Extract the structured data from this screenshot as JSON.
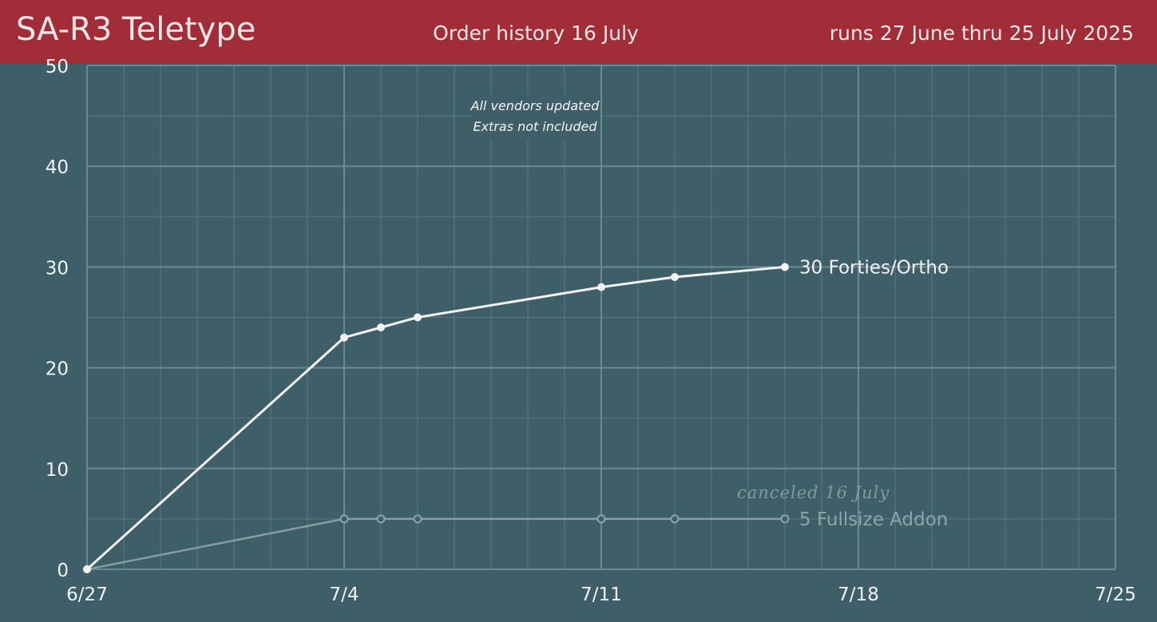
{
  "header": {
    "title": "SA-R3 Teletype",
    "subtitle": "Order history 16 July",
    "range": "runs 27 June thru 25 July 2025"
  },
  "colors": {
    "header_bg": "#a02d38",
    "plot_bg": "#3f5f68",
    "grid": "#6e8f97",
    "active_series": "#f2f2f2",
    "canceled_series": "#8fa3a8"
  },
  "chart_data": {
    "type": "line",
    "xlim": [
      "2025-06-27",
      "2025-07-25"
    ],
    "ylim": [
      0,
      50
    ],
    "x_ticks": [
      {
        "date": "2025-06-27",
        "label": "6/27"
      },
      {
        "date": "2025-07-04",
        "label": "7/4"
      },
      {
        "date": "2025-07-11",
        "label": "7/11"
      },
      {
        "date": "2025-07-18",
        "label": "7/18"
      },
      {
        "date": "2025-07-25",
        "label": "7/25"
      }
    ],
    "y_ticks": [
      0,
      10,
      20,
      30,
      40,
      50
    ],
    "grid": true,
    "annotations": [
      "All vendors updated",
      "Extras not included"
    ],
    "series": [
      {
        "name": "30 Forties/Ortho",
        "status": "active",
        "points": [
          {
            "x": "2025-06-27",
            "y": 0
          },
          {
            "x": "2025-07-04",
            "y": 23
          },
          {
            "x": "2025-07-05",
            "y": 24
          },
          {
            "x": "2025-07-06",
            "y": 25
          },
          {
            "x": "2025-07-11",
            "y": 28
          },
          {
            "x": "2025-07-13",
            "y": 29
          },
          {
            "x": "2025-07-16",
            "y": 30
          }
        ]
      },
      {
        "name": "5 Fullsize Addon",
        "status": "canceled",
        "note": "canceled 16 July",
        "points": [
          {
            "x": "2025-06-27",
            "y": 0
          },
          {
            "x": "2025-07-04",
            "y": 5
          },
          {
            "x": "2025-07-05",
            "y": 5
          },
          {
            "x": "2025-07-06",
            "y": 5
          },
          {
            "x": "2025-07-11",
            "y": 5
          },
          {
            "x": "2025-07-13",
            "y": 5
          },
          {
            "x": "2025-07-16",
            "y": 5
          }
        ]
      }
    ]
  }
}
